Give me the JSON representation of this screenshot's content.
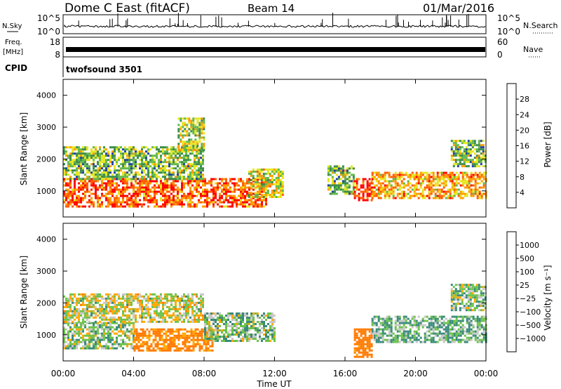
{
  "header": {
    "station": "Dome C East (fitACF)",
    "beam": "Beam 14",
    "date": "01/Mar/2016"
  },
  "nsky_panel": {
    "label": "N.Sky",
    "ticks_left": [
      "10^5",
      "10^0"
    ],
    "ticks_right": [
      "10^5",
      "10^0"
    ],
    "right_label": "N.Search"
  },
  "freq_panel": {
    "label": "Freq.",
    "unit": "[MHz]",
    "ticks_left": [
      "18",
      "8"
    ],
    "ticks_right": [
      "60",
      "0"
    ],
    "right_label": "Nave"
  },
  "cpid_panel": {
    "label": "CPID",
    "program": "twofsound 3501"
  },
  "x_axis": {
    "title": "Time UT",
    "ticks": [
      "00:00",
      "04:00",
      "08:00",
      "12:00",
      "16:00",
      "20:00",
      "00:00"
    ]
  },
  "power_colorbar": {
    "title": "Power [dB]",
    "ticks": [
      "28",
      "24",
      "20",
      "16",
      "12",
      "8",
      "4"
    ],
    "colors": [
      "#0000ff",
      "#2040a0",
      "#3b8a4a",
      "#62b84a",
      "#e6e61e",
      "#ff9a00",
      "#ff5a00",
      "#ff0000"
    ]
  },
  "velocity_colorbar": {
    "title": "Velocity [m s⁻¹]",
    "ticks": [
      "1000",
      "500",
      "100",
      "25",
      "−25",
      "−100",
      "−500",
      "−1000"
    ],
    "colors": [
      "#1a3fd0",
      "#2f6fb0",
      "#3a8a7a",
      "#6cc24a",
      "#c8c8c8",
      "#ffa800",
      "#ff7a00",
      "#ff3000",
      "#ff0000"
    ]
  },
  "chart_data": [
    {
      "type": "heatmap",
      "title": "Power",
      "xlabel": "Time UT",
      "ylabel": "Slant Range [km]",
      "xlim": [
        0,
        24
      ],
      "ylim": [
        180,
        4500
      ],
      "yticks": [
        1000,
        2000,
        3000,
        4000
      ],
      "colorbar": {
        "label": "Power [dB]",
        "range": [
          0,
          32
        ]
      },
      "regions": [
        {
          "x": [
            0.0,
            11.5
          ],
          "y": [
            500,
            1400
          ],
          "value": 26
        },
        {
          "x": [
            0.0,
            8.0
          ],
          "y": [
            1400,
            2400
          ],
          "value": 14
        },
        {
          "x": [
            6.5,
            8.0
          ],
          "y": [
            2300,
            3300
          ],
          "value": 16
        },
        {
          "x": [
            10.5,
            12.5
          ],
          "y": [
            800,
            1700
          ],
          "value": 18
        },
        {
          "x": [
            15.0,
            16.5
          ],
          "y": [
            900,
            1800
          ],
          "value": 14
        },
        {
          "x": [
            16.5,
            17.5
          ],
          "y": [
            700,
            1400
          ],
          "value": 28
        },
        {
          "x": [
            17.5,
            24.0
          ],
          "y": [
            800,
            1600
          ],
          "value": 22
        },
        {
          "x": [
            22.0,
            24.0
          ],
          "y": [
            1800,
            2600
          ],
          "value": 14
        }
      ]
    },
    {
      "type": "heatmap",
      "title": "Velocity",
      "xlabel": "Time UT",
      "ylabel": "Slant Range [km]",
      "xlim": [
        0,
        24
      ],
      "ylim": [
        180,
        4500
      ],
      "yticks": [
        1000,
        2000,
        3000,
        4000
      ],
      "colorbar": {
        "label": "Velocity [m s⁻¹]",
        "range": [
          -1000,
          1000
        ]
      },
      "regions": [
        {
          "x": [
            0.0,
            4.0
          ],
          "y": [
            600,
            1400
          ],
          "value": 50
        },
        {
          "x": [
            4.0,
            8.5
          ],
          "y": [
            500,
            1200
          ],
          "value": -150
        },
        {
          "x": [
            0.0,
            8.0
          ],
          "y": [
            1400,
            2300
          ],
          "value": 0
        },
        {
          "x": [
            8.0,
            12.0
          ],
          "y": [
            800,
            1700
          ],
          "value": 60
        },
        {
          "x": [
            16.5,
            17.5
          ],
          "y": [
            300,
            1200
          ],
          "value": -200
        },
        {
          "x": [
            17.5,
            24.0
          ],
          "y": [
            800,
            1600
          ],
          "value": 90
        },
        {
          "x": [
            22.0,
            24.0
          ],
          "y": [
            1800,
            2600
          ],
          "value": 60
        }
      ]
    }
  ]
}
